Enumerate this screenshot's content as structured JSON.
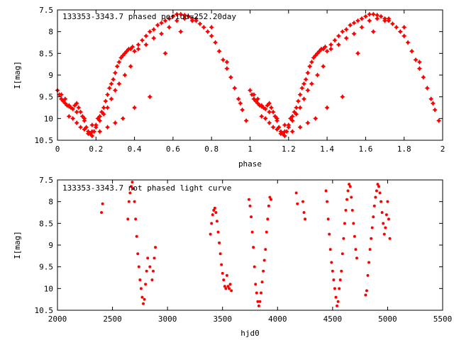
{
  "chart_data": [
    {
      "type": "scatter",
      "title": "133353-3343.7 phased period=252.20day",
      "xlabel": "phase",
      "ylabel": "I[mag]",
      "xlim": [
        0,
        2
      ],
      "ylim": [
        10.5,
        7.5
      ],
      "y_inverted": true,
      "xticks": [
        "0",
        "0.2",
        "0.4",
        "0.6",
        "0.8",
        "1",
        "1.2",
        "1.4",
        "1.6",
        "1.8",
        "2"
      ],
      "yticks": [
        "7.5",
        "8",
        "8.5",
        "9",
        "9.5",
        "10",
        "10.5"
      ],
      "grid": false,
      "color": "#ff0000",
      "marker": "star",
      "note": "phase 1-2 repeats phase 0-1",
      "series": [
        {
          "x": [
            0.0,
            0.01,
            0.02,
            0.03,
            0.04,
            0.05,
            0.06,
            0.07,
            0.08,
            0.09,
            0.1,
            0.11,
            0.12,
            0.13,
            0.14,
            0.15,
            0.16,
            0.17,
            0.18,
            0.19,
            0.2,
            0.21,
            0.22,
            0.23,
            0.24,
            0.25,
            0.26,
            0.27,
            0.28,
            0.29,
            0.3,
            0.31,
            0.32,
            0.33,
            0.34,
            0.35,
            0.36,
            0.37,
            0.38,
            0.39,
            0.4,
            0.42,
            0.44,
            0.46,
            0.48,
            0.5,
            0.52,
            0.54,
            0.56,
            0.58,
            0.6,
            0.62,
            0.64,
            0.66,
            0.68,
            0.7,
            0.72,
            0.74,
            0.76,
            0.78,
            0.8,
            0.82,
            0.84,
            0.86,
            0.88,
            0.9,
            0.92,
            0.94,
            0.96,
            0.98,
            0.06,
            0.08,
            0.1,
            0.12,
            0.14,
            0.16,
            0.18,
            0.2,
            0.22,
            0.24,
            0.26,
            0.28,
            0.3,
            0.32,
            0.35,
            0.38,
            0.42,
            0.46,
            0.5,
            0.54,
            0.58,
            0.62,
            0.66,
            0.7,
            0.02,
            0.04,
            0.06,
            0.1,
            0.14,
            0.18,
            0.22,
            0.26,
            0.3,
            0.34,
            0.4,
            0.48,
            0.56,
            0.64,
            0.72,
            0.8,
            0.88,
            0.95
          ],
          "y": [
            9.35,
            9.45,
            9.55,
            9.6,
            9.65,
            9.7,
            9.72,
            9.75,
            9.78,
            9.7,
            9.65,
            9.75,
            9.85,
            9.95,
            10.05,
            10.2,
            10.3,
            10.35,
            10.4,
            10.3,
            10.2,
            10.0,
            9.95,
            9.85,
            9.75,
            9.6,
            9.45,
            9.3,
            9.2,
            9.1,
            8.95,
            8.8,
            8.7,
            8.6,
            8.55,
            8.5,
            8.45,
            8.4,
            8.4,
            8.35,
            8.45,
            8.3,
            8.2,
            8.1,
            8.0,
            7.95,
            7.85,
            7.8,
            7.75,
            7.7,
            7.65,
            7.6,
            7.6,
            7.62,
            7.65,
            7.7,
            7.75,
            7.82,
            7.9,
            8.0,
            8.1,
            8.25,
            8.45,
            8.65,
            8.85,
            9.05,
            9.3,
            9.55,
            9.8,
            10.05,
            9.95,
            10.0,
            10.1,
            10.2,
            10.25,
            10.35,
            10.3,
            10.15,
            10.05,
            9.9,
            9.75,
            9.55,
            9.35,
            9.2,
            9.0,
            8.8,
            8.4,
            8.3,
            8.15,
            8.05,
            7.9,
            7.75,
            7.7,
            7.75,
            9.45,
            9.55,
            9.7,
            9.85,
            10.0,
            10.15,
            10.3,
            10.2,
            10.1,
            10.0,
            9.75,
            9.5,
            8.5,
            8.0,
            7.7,
            7.9,
            8.7,
            9.65
          ]
        }
      ]
    },
    {
      "type": "scatter",
      "title": "133353-3343.7 not phased light curve",
      "xlabel": "hjd0",
      "ylabel": "I[mag]",
      "xlim": [
        2000,
        5500
      ],
      "ylim": [
        10.5,
        7.5
      ],
      "y_inverted": true,
      "xticks": [
        "2000",
        "2500",
        "3000",
        "3500",
        "4000",
        "4500",
        "5000",
        "5500"
      ],
      "yticks": [
        "7.5",
        "8",
        "8.5",
        "9",
        "9.5",
        "10",
        "10.5"
      ],
      "grid": false,
      "color": "#ff0000",
      "marker": "dot",
      "series": [
        {
          "x": [
            2400,
            2410,
            2640,
            2650,
            2660,
            2670,
            2680,
            2690,
            2700,
            2710,
            2720,
            2730,
            2740,
            2750,
            2760,
            2770,
            2780,
            2790,
            2800,
            2810,
            2820,
            2840,
            2860,
            2870,
            2880,
            2890,
            3390,
            3400,
            3410,
            3420,
            3430,
            3440,
            3450,
            3460,
            3470,
            3480,
            3490,
            3500,
            3510,
            3520,
            3530,
            3540,
            3550,
            3560,
            3570,
            3580,
            3740,
            3750,
            3760,
            3770,
            3780,
            3790,
            3800,
            3810,
            3820,
            3830,
            3840,
            3850,
            3860,
            3870,
            3880,
            3890,
            3900,
            3910,
            3920,
            3930,
            3940,
            4170,
            4180,
            4230,
            4240,
            4250,
            4440,
            4450,
            4460,
            4470,
            4480,
            4490,
            4500,
            4510,
            4520,
            4530,
            4540,
            4550,
            4560,
            4570,
            4580,
            4590,
            4600,
            4610,
            4620,
            4630,
            4640,
            4650,
            4660,
            4670,
            4680,
            4690,
            4700,
            4710,
            4720,
            4800,
            4810,
            4820,
            4830,
            4840,
            4850,
            4860,
            4870,
            4880,
            4890,
            4900,
            4910,
            4920,
            4930,
            4940,
            4950,
            4960,
            4970,
            4980,
            4990,
            5000,
            5010,
            5020
          ],
          "y": [
            8.25,
            8.05,
            8.4,
            8.0,
            7.8,
            7.65,
            7.55,
            7.7,
            8.0,
            8.4,
            8.8,
            9.2,
            9.5,
            9.8,
            10.0,
            10.2,
            10.35,
            10.25,
            9.9,
            9.6,
            9.3,
            9.5,
            9.8,
            9.6,
            9.3,
            9.05,
            8.75,
            8.5,
            8.3,
            8.2,
            8.15,
            8.25,
            8.45,
            8.7,
            8.95,
            9.2,
            9.45,
            9.65,
            9.8,
            9.95,
            10.0,
            9.7,
            9.95,
            10.0,
            9.9,
            10.05,
            7.95,
            8.1,
            8.35,
            8.7,
            9.05,
            9.5,
            9.9,
            10.1,
            10.3,
            10.4,
            10.3,
            10.1,
            9.85,
            9.6,
            9.35,
            9.1,
            8.7,
            8.4,
            8.1,
            7.9,
            7.95,
            7.8,
            8.05,
            8.0,
            8.25,
            8.4,
            7.75,
            8.0,
            8.4,
            8.75,
            9.1,
            9.4,
            9.6,
            9.8,
            10.0,
            10.2,
            10.4,
            10.3,
            10.0,
            9.8,
            9.6,
            9.2,
            8.85,
            8.5,
            8.2,
            7.95,
            7.75,
            7.6,
            7.65,
            7.9,
            8.2,
            8.5,
            8.8,
            9.1,
            9.3,
            10.15,
            10.05,
            9.7,
            9.4,
            9.1,
            8.85,
            8.6,
            8.35,
            8.1,
            7.9,
            7.75,
            7.6,
            7.65,
            7.8,
            8.0,
            8.25,
            8.5,
            8.75,
            8.6,
            8.3,
            8.0,
            8.4,
            8.85
          ]
        }
      ]
    }
  ]
}
